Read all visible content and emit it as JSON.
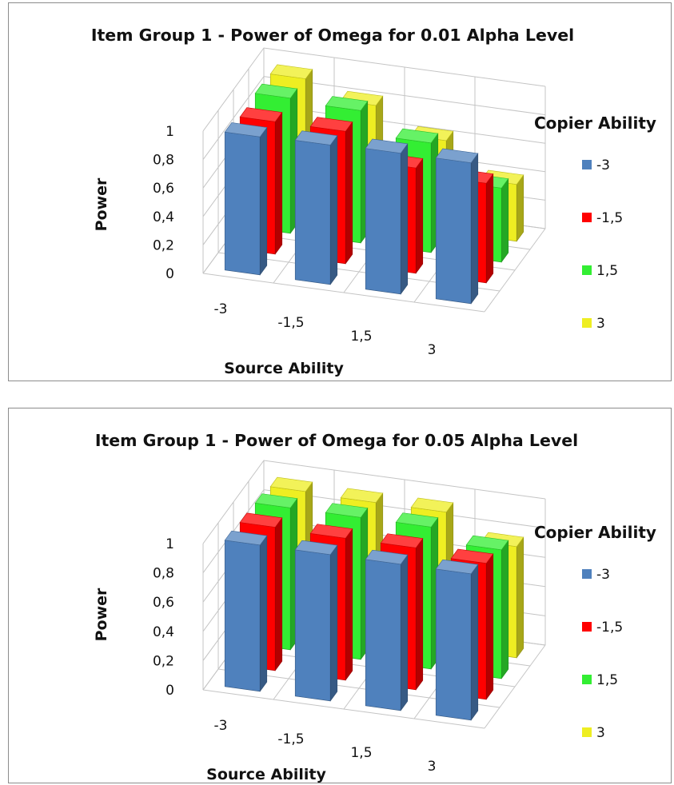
{
  "chart_data": [
    {
      "type": "bar",
      "title": "Item Group 1 - Power of Omega for 0.01 Alpha Level",
      "xlabel": "Source Ability",
      "ylabel": "Power",
      "categories": [
        "-3",
        "-1,5",
        "1,5",
        "3"
      ],
      "y_ticks": [
        "0",
        "0,2",
        "0,4",
        "0,6",
        "0,8",
        "1"
      ],
      "ylim": [
        0,
        1
      ],
      "legend_title": "Copier Ability",
      "legend_position": "right",
      "grid": true,
      "series": [
        {
          "name": "-3",
          "color": "#4f81bd",
          "values": [
            0.97,
            0.98,
            0.99,
            0.99
          ]
        },
        {
          "name": "-1,5",
          "color": "#ff0000",
          "values": [
            0.93,
            0.93,
            0.74,
            0.7
          ]
        },
        {
          "name": "1,5",
          "color": "#33ee33",
          "values": [
            0.95,
            0.93,
            0.77,
            0.52
          ]
        },
        {
          "name": "3",
          "color": "#eeee22",
          "values": [
            0.94,
            0.82,
            0.64,
            0.4
          ]
        }
      ]
    },
    {
      "type": "bar",
      "title": "Item Group 1 - Power of Omega for 0.05 Alpha Level",
      "xlabel": "Source Ability",
      "ylabel": "Power",
      "categories": [
        "-3",
        "-1,5",
        "1,5",
        "3"
      ],
      "y_ticks": [
        "0",
        "0,2",
        "0,4",
        "0,6",
        "0,8",
        "1"
      ],
      "ylim": [
        0,
        1
      ],
      "legend_title": "Copier Ability",
      "legend_position": "right",
      "grid": true,
      "series": [
        {
          "name": "-3",
          "color": "#4f81bd",
          "values": [
            1.0,
            1.0,
            1.0,
            1.0
          ]
        },
        {
          "name": "-1,5",
          "color": "#ff0000",
          "values": [
            0.98,
            0.97,
            0.97,
            0.93
          ]
        },
        {
          "name": "1,5",
          "color": "#33ee33",
          "values": [
            0.97,
            0.97,
            0.97,
            0.88
          ]
        },
        {
          "name": "3",
          "color": "#eeee22",
          "values": [
            0.94,
            0.93,
            0.93,
            0.76
          ]
        }
      ]
    }
  ]
}
